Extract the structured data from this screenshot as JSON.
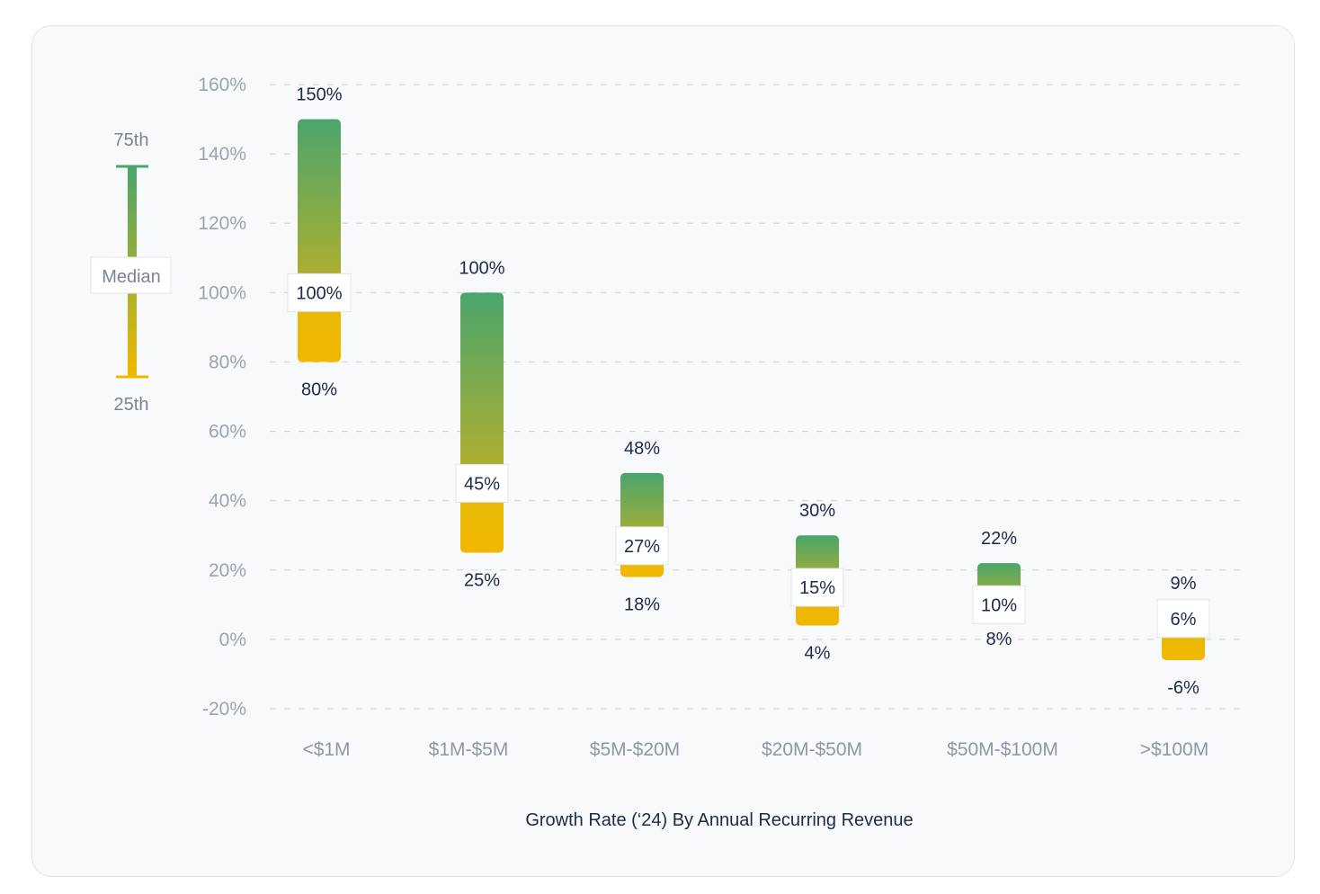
{
  "chart_data": {
    "type": "bar",
    "subtype": "floating-range (25th to 75th percentile with median)",
    "title": "Growth Rate (‘24) By Annual Recurring Revenue",
    "xlabel": "",
    "ylabel": "",
    "ylim": [
      -20,
      160
    ],
    "yticks": [
      160,
      140,
      120,
      100,
      80,
      60,
      40,
      20,
      0,
      -20
    ],
    "ytick_labels": [
      "160%",
      "140%",
      "120%",
      "100%",
      "80%",
      "60%",
      "40%",
      "20%",
      "0%",
      "-20%"
    ],
    "grid": true,
    "categories": [
      "<$1M",
      "$1M-$5M",
      "$5M-$20M",
      "$20M-$50M",
      "$50M-$100M",
      ">$100M"
    ],
    "series": [
      {
        "name": "75th",
        "values": [
          150,
          100,
          48,
          30,
          22,
          9
        ],
        "labels": [
          "150%",
          "100%",
          "48%",
          "30%",
          "22%",
          "9%"
        ]
      },
      {
        "name": "Median",
        "values": [
          100,
          45,
          27,
          15,
          10,
          6
        ],
        "labels": [
          "100%",
          "45%",
          "27%",
          "15%",
          "10%",
          "6%"
        ]
      },
      {
        "name": "25th",
        "values": [
          80,
          25,
          18,
          4,
          8,
          -6
        ],
        "labels": [
          "80%",
          "25%",
          "18%",
          "4%",
          "8%",
          "-6%"
        ]
      }
    ],
    "legend": {
      "top_label": "75th",
      "middle_label": "Median",
      "bottom_label": "25th",
      "placement": "left"
    },
    "colors": {
      "top": "#4aa56c",
      "bottom": "#f1b800",
      "grid": "#d3d8e0"
    }
  }
}
